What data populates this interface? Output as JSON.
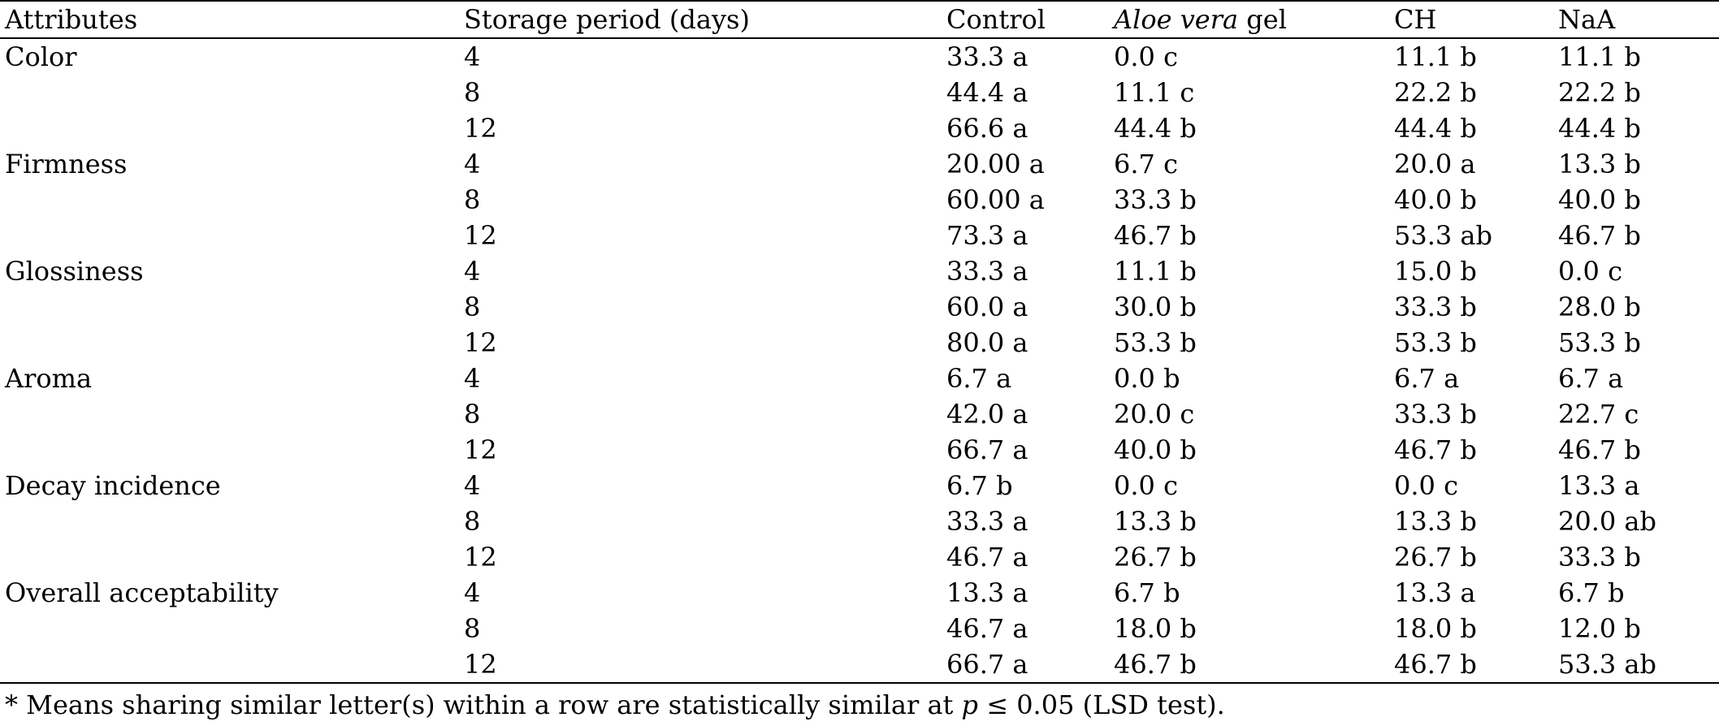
{
  "table": {
    "headers": {
      "attributes": "Attributes",
      "period": "Storage period (days)",
      "control": "Control",
      "aloe_italic": "Aloe vera",
      "aloe_rest": " gel",
      "ch": "CH",
      "naa": "NaA"
    },
    "rows": [
      {
        "attribute": "Color",
        "period": "4",
        "control": "33.3 a",
        "aloe": "0.0 c",
        "ch": "11.1 b",
        "naa": "11.1 b"
      },
      {
        "attribute": "",
        "period": "8",
        "control": "44.4 a",
        "aloe": "11.1 c",
        "ch": "22.2 b",
        "naa": "22.2 b"
      },
      {
        "attribute": "",
        "period": "12",
        "control": "66.6 a",
        "aloe": "44.4 b",
        "ch": "44.4 b",
        "naa": "44.4 b"
      },
      {
        "attribute": "Firmness",
        "period": "4",
        "control": "20.00 a",
        "aloe": "6.7 c",
        "ch": "20.0 a",
        "naa": "13.3 b"
      },
      {
        "attribute": "",
        "period": "8",
        "control": "60.00 a",
        "aloe": "33.3 b",
        "ch": "40.0 b",
        "naa": "40.0 b"
      },
      {
        "attribute": "",
        "period": "12",
        "control": "73.3 a",
        "aloe": "46.7 b",
        "ch": "53.3 ab",
        "naa": "46.7 b"
      },
      {
        "attribute": "Glossiness",
        "period": "4",
        "control": "33.3 a",
        "aloe": "11.1 b",
        "ch": "15.0 b",
        "naa": "0.0 c"
      },
      {
        "attribute": "",
        "period": "8",
        "control": "60.0 a",
        "aloe": "30.0 b",
        "ch": "33.3 b",
        "naa": "28.0 b"
      },
      {
        "attribute": "",
        "period": "12",
        "control": "80.0 a",
        "aloe": "53.3 b",
        "ch": "53.3 b",
        "naa": "53.3 b"
      },
      {
        "attribute": "Aroma",
        "period": "4",
        "control": "6.7 a",
        "aloe": "0.0 b",
        "ch": "6.7 a",
        "naa": "6.7 a"
      },
      {
        "attribute": "",
        "period": "8",
        "control": "42.0 a",
        "aloe": "20.0 c",
        "ch": "33.3 b",
        "naa": "22.7 c"
      },
      {
        "attribute": "",
        "period": "12",
        "control": "66.7 a",
        "aloe": "40.0 b",
        "ch": "46.7 b",
        "naa": "46.7 b"
      },
      {
        "attribute": "Decay incidence",
        "period": "4",
        "control": "6.7 b",
        "aloe": "0.0 c",
        "ch": "0.0 c",
        "naa": "13.3 a"
      },
      {
        "attribute": "",
        "period": "8",
        "control": "33.3 a",
        "aloe": "13.3 b",
        "ch": "13.3 b",
        "naa": "20.0 ab"
      },
      {
        "attribute": "",
        "period": "12",
        "control": "46.7 a",
        "aloe": "26.7 b",
        "ch": "26.7 b",
        "naa": "33.3 b"
      },
      {
        "attribute": "Overall acceptability",
        "period": "4",
        "control": "13.3 a",
        "aloe": "6.7 b",
        "ch": "13.3 a",
        "naa": "6.7 b"
      },
      {
        "attribute": "",
        "period": "8",
        "control": "46.7 a",
        "aloe": "18.0 b",
        "ch": "18.0 b",
        "naa": "12.0 b"
      },
      {
        "attribute": "",
        "period": "12",
        "control": "66.7 a",
        "aloe": "46.7 b",
        "ch": "46.7 b",
        "naa": "53.3 ab"
      }
    ]
  },
  "footnote": {
    "prefix": "* Means sharing similar letter(s) within a row are statistically similar at ",
    "p": "p",
    "suffix": " ≤ 0.05 (LSD test)."
  }
}
